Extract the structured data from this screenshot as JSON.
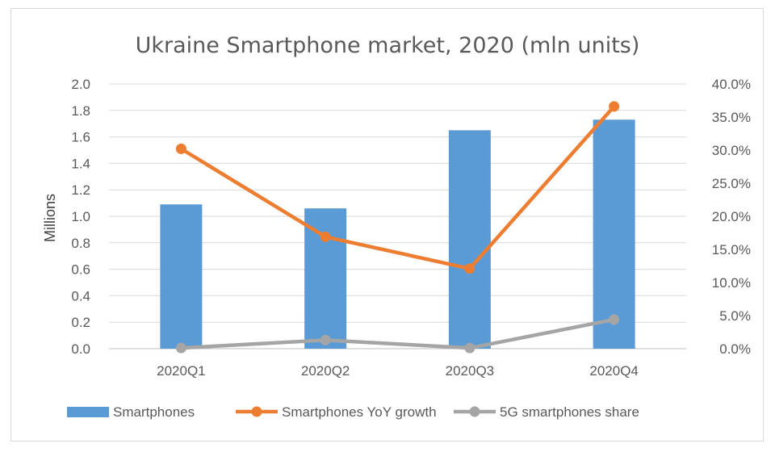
{
  "chart_data": {
    "type": "bar",
    "title": "Ukraine Smartphone market, 2020 (mln units)",
    "xlabel": "",
    "ylabel": "Millions",
    "categories": [
      "2020Q1",
      "2020Q2",
      "2020Q3",
      "2020Q4"
    ],
    "ylim": [
      0,
      2.0
    ],
    "y_ticks": [
      "0.0",
      "0.2",
      "0.4",
      "0.6",
      "0.8",
      "1.0",
      "1.2",
      "1.4",
      "1.6",
      "1.8",
      "2.0"
    ],
    "y2lim": [
      0,
      0.4
    ],
    "y2_ticks": [
      "0.0%",
      "5.0%",
      "10.0%",
      "15.0%",
      "20.0%",
      "25.0%",
      "30.0%",
      "35.0%",
      "40.0%"
    ],
    "grid": true,
    "legend": "bottom",
    "series": [
      {
        "name": "Smartphones",
        "kind": "bar",
        "axis": "left",
        "color": "#5b9bd5",
        "values": [
          1.09,
          1.06,
          1.65,
          1.73
        ]
      },
      {
        "name": "Smartphones YoY growth",
        "kind": "line",
        "axis": "right",
        "color": "#ed7d31",
        "values": [
          0.302,
          0.169,
          0.121,
          0.366
        ]
      },
      {
        "name": "5G smartphones share",
        "kind": "line",
        "axis": "right",
        "color": "#a5a5a5",
        "values": [
          0.001,
          0.013,
          0.001,
          0.044
        ]
      }
    ]
  }
}
